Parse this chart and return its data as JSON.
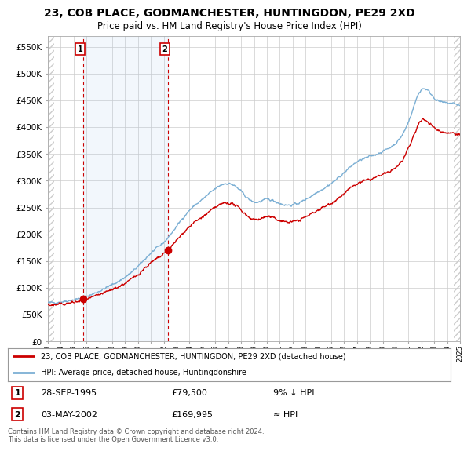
{
  "title": "23, COB PLACE, GODMANCHESTER, HUNTINGDON, PE29 2XD",
  "subtitle": "Price paid vs. HM Land Registry's House Price Index (HPI)",
  "title_fontsize": 10,
  "subtitle_fontsize": 8.5,
  "ylim": [
    0,
    570000
  ],
  "yticks": [
    0,
    50000,
    100000,
    150000,
    200000,
    250000,
    300000,
    350000,
    400000,
    450000,
    500000,
    550000
  ],
  "ytick_labels": [
    "£0",
    "£50K",
    "£100K",
    "£150K",
    "£200K",
    "£250K",
    "£300K",
    "£350K",
    "£400K",
    "£450K",
    "£500K",
    "£550K"
  ],
  "hpi_line_color": "#7bafd4",
  "price_line_color": "#cc0000",
  "marker_color": "#cc0000",
  "bg_color": "#ffffff",
  "plot_bg_color": "#ffffff",
  "sale1_year": 1995.75,
  "sale1_price": 79500,
  "sale1_label": "1",
  "sale2_year": 2002.34,
  "sale2_price": 169995,
  "sale2_label": "2",
  "legend_label1": "23, COB PLACE, GODMANCHESTER, HUNTINGDON, PE29 2XD (detached house)",
  "legend_label2": "HPI: Average price, detached house, Huntingdonshire",
  "table_row1": [
    "1",
    "28-SEP-1995",
    "£79,500",
    "9% ↓ HPI"
  ],
  "table_row2": [
    "2",
    "03-MAY-2002",
    "£169,995",
    "≈ HPI"
  ],
  "footer": "Contains HM Land Registry data © Crown copyright and database right 2024.\nThis data is licensed under the Open Government Licence v3.0.",
  "xmin": 1993,
  "xmax": 2025
}
